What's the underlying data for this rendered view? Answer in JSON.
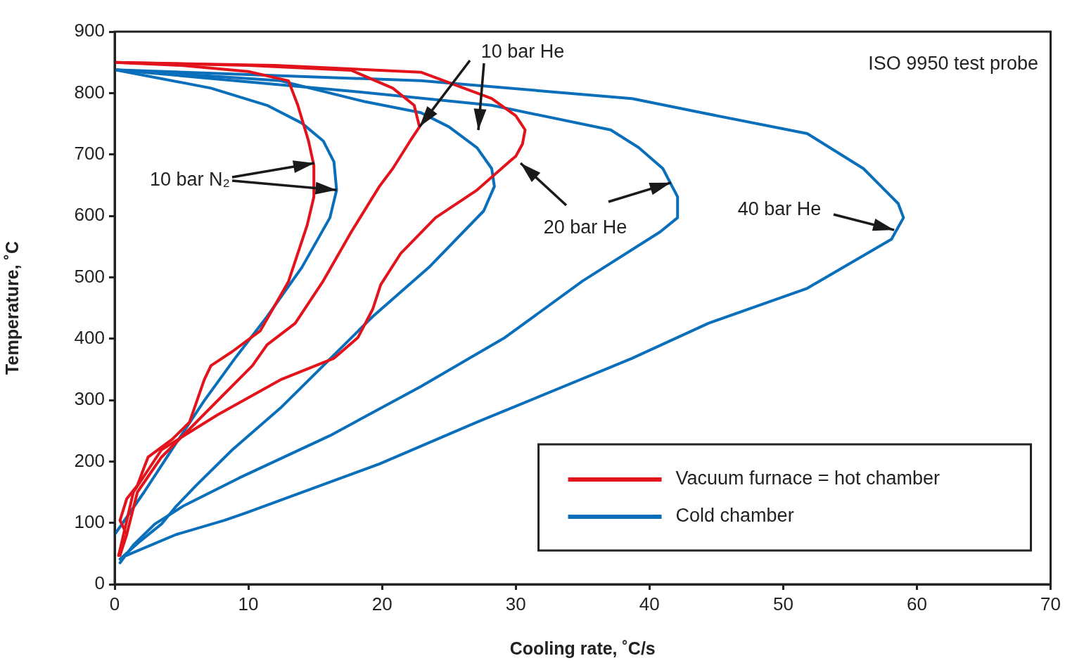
{
  "chart_data": {
    "type": "line",
    "xlabel": "Cooling rate, ˚C/s",
    "ylabel": "Temperature, ˚C",
    "xlim": [
      0,
      70
    ],
    "ylim": [
      0,
      900
    ],
    "xticks": [
      0,
      10,
      20,
      30,
      40,
      50,
      60,
      70
    ],
    "yticks": [
      0,
      100,
      200,
      300,
      400,
      500,
      600,
      700,
      800,
      900
    ],
    "grid": false,
    "legend": "bottom right",
    "marker": "none",
    "line_style": "solid",
    "series": [
      {
        "name": "Vacuum furnace = hot chamber",
        "color": "#e3131b",
        "x": [
          0,
          5,
          10,
          13,
          13.7,
          14.5,
          14.9,
          14.9,
          14.4,
          13,
          10.9,
          8.8,
          7.2,
          6.7,
          5.6,
          4.3,
          2.5,
          2.2,
          1.7,
          0.9,
          0.4,
          0.9,
          0.3
        ],
        "values": [
          850,
          845,
          835,
          820,
          780,
          722,
          682,
          631,
          585,
          493,
          413,
          379,
          356,
          333,
          264,
          236,
          207,
          190,
          161,
          139,
          104,
          81,
          47
        ]
      },
      {
        "color": "#e3131b",
        "x": [
          0,
          10,
          17.7,
          20.8,
          22.4,
          22.8,
          22.1,
          20.8,
          19.8,
          17.7,
          15.6,
          13.5,
          11.4,
          10.3,
          8.2,
          5.6,
          3.5,
          1.7,
          0.9,
          0.4
        ],
        "values": [
          850,
          845,
          837,
          808,
          780,
          745,
          722,
          677,
          648,
          574,
          494,
          425,
          390,
          356,
          310,
          253,
          207,
          150,
          81,
          47
        ]
      },
      {
        "color": "#e3131b",
        "x": [
          0,
          12,
          22.9,
          28.2,
          30,
          30.7,
          30.5,
          30,
          29.5,
          27.1,
          24,
          21.4,
          19.9,
          19.3,
          18.2,
          16.4,
          12.4,
          7.7,
          3.5,
          1.4,
          0.3
        ],
        "values": [
          850,
          845,
          834,
          791,
          763,
          740,
          717,
          697,
          688,
          642,
          597,
          539,
          488,
          448,
          402,
          368,
          333,
          276,
          219,
          150,
          47
        ]
      },
      {
        "name": "Cold chamber",
        "color": "#0a6fba",
        "x": [
          0,
          7.2,
          11.4,
          14,
          15.6,
          16.4,
          16.6,
          16.1,
          14,
          11.4,
          9,
          6.7,
          4.6,
          2.2,
          0
        ],
        "values": [
          838,
          808,
          780,
          751,
          722,
          688,
          642,
          597,
          516,
          436,
          368,
          299,
          230,
          150,
          81
        ]
      },
      {
        "color": "#0a6fba",
        "x": [
          0,
          12.4,
          18.7,
          22.9,
          25,
          27.1,
          28.2,
          28.4,
          27.6,
          23.5,
          19.3,
          15.6,
          12.4,
          8.8,
          6.1,
          4.6,
          3.5,
          1.9,
          0.4
        ],
        "values": [
          838,
          820,
          786,
          768,
          745,
          711,
          677,
          648,
          608,
          516,
          436,
          356,
          287,
          219,
          161,
          127,
          98,
          70,
          41
        ]
      },
      {
        "color": "#0a6fba",
        "x": [
          0,
          17.7,
          28.2,
          37.1,
          39.2,
          41,
          42.1,
          42.1,
          40.8,
          35,
          29.2,
          22.9,
          16.1,
          9.3,
          5.1,
          3,
          1.4,
          0.4
        ],
        "values": [
          838,
          803,
          780,
          740,
          711,
          677,
          631,
          597,
          574,
          494,
          402,
          322,
          242,
          173,
          127,
          98,
          64,
          35
        ]
      },
      {
        "color": "#0a6fba",
        "x": [
          0,
          22.9,
          38.7,
          43.9,
          51.8,
          56,
          58.6,
          59,
          58.1,
          51.8,
          44.4,
          38.7,
          27.1,
          19.8,
          9.8,
          8.2,
          4.6,
          0.9
        ],
        "values": [
          838,
          820,
          791,
          768,
          734,
          677,
          620,
          597,
          562,
          482,
          425,
          368,
          264,
          196,
          116,
          104,
          81,
          47
        ]
      }
    ],
    "annotations": [
      "ISO 9950 test probe",
      {
        "text": "10 bar N₂",
        "x": 16.6,
        "y": 642
      },
      {
        "text": "10 bar He",
        "x": 22.8,
        "y": 745
      },
      {
        "text": "20 bar He",
        "x": 41.6,
        "y": 654
      },
      {
        "text": "40 bar He",
        "x": 58.3,
        "y": 577
      }
    ]
  }
}
